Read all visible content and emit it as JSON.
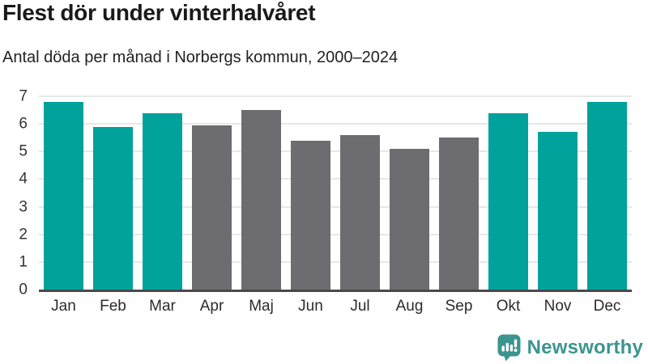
{
  "header": {
    "title": "Flest dör under vinterhalvåret",
    "subtitle": "Antal döda per månad i Norbergs kommun, 2000–2024"
  },
  "chart_data": {
    "type": "bar",
    "title": "Flest dör under vinterhalvåret",
    "subtitle": "Antal döda per månad i Norbergs kommun, 2000–2024",
    "categories": [
      "Jan",
      "Feb",
      "Mar",
      "Apr",
      "Maj",
      "Jun",
      "Jul",
      "Aug",
      "Sep",
      "Okt",
      "Nov",
      "Dec"
    ],
    "values": [
      6.8,
      5.9,
      6.4,
      5.95,
      6.5,
      5.4,
      5.6,
      5.1,
      5.5,
      6.4,
      5.7,
      6.8
    ],
    "highlighted_categories": [
      "Jan",
      "Feb",
      "Mar",
      "Okt",
      "Nov",
      "Dec"
    ],
    "bar_colors": [
      "#00a29b",
      "#00a29b",
      "#00a29b",
      "#6c6c71",
      "#6c6c71",
      "#6c6c71",
      "#6c6c71",
      "#6c6c71",
      "#6c6c71",
      "#00a29b",
      "#00a29b",
      "#00a29b"
    ],
    "colors": {
      "highlight": "#00a29b",
      "muted": "#6c6c71",
      "axis": "#4a4a4a",
      "grid": "#e7e7e7"
    },
    "yticks": [
      0,
      1,
      2,
      3,
      4,
      5,
      6,
      7
    ],
    "ylim": [
      0,
      7
    ],
    "xlabel": "",
    "ylabel": "",
    "grid": true,
    "legend": "none"
  },
  "footer": {
    "brand": "Newsworthy",
    "brand_color": "#3b948f",
    "logo_icon": "speech-bubble-bar-chart-exclamation"
  }
}
